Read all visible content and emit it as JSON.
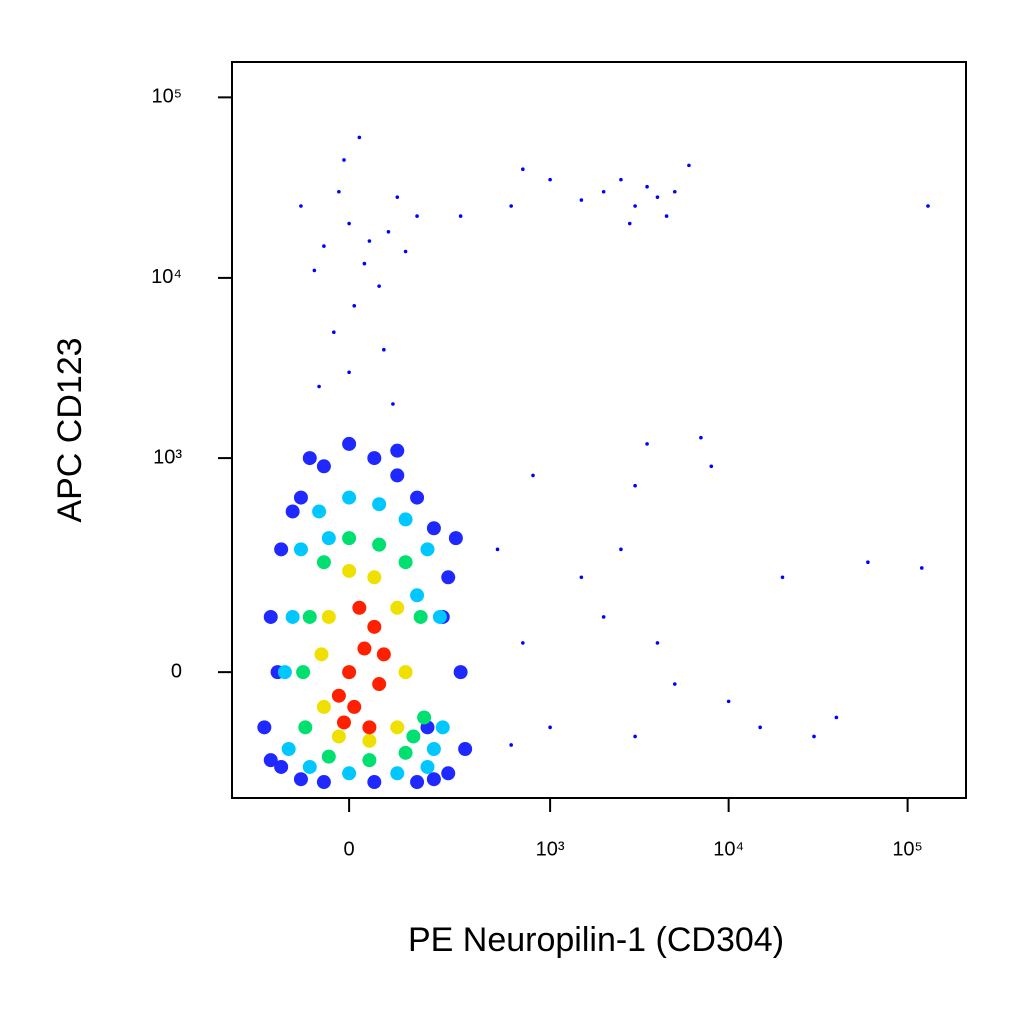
{
  "chart_data": {
    "type": "scatter",
    "x_label": "PE Neuropilin-1 (CD304)",
    "y_label": "APC  CD123",
    "xscale": "biexponential",
    "yscale": "biexponential",
    "xlim": [
      -325,
      212000
    ],
    "ylim": [
      -313,
      157000
    ],
    "xticks": [
      0,
      {
        "value": 1000,
        "label": "10³"
      },
      {
        "value": 10000,
        "label": "10⁴"
      },
      {
        "value": 100000,
        "label": "10⁵"
      }
    ],
    "yticks": [
      0,
      {
        "value": 1000,
        "label": "10³"
      },
      {
        "value": 10000,
        "label": "10⁴"
      },
      {
        "value": 100000,
        "label": "10⁵"
      }
    ],
    "series": [
      {
        "color": "#0000ff",
        "x": [
          -50,
          0,
          30,
          80,
          -100,
          60,
          120,
          -20,
          150,
          10,
          -70,
          100,
          40,
          -30,
          70,
          0,
          -60,
          90,
          20,
          -10,
          2000,
          3000,
          2500,
          4000,
          3500,
          1500,
          5000,
          1000,
          700,
          2800,
          4500,
          6000,
          600,
          300,
          130000,
          800,
          3000,
          500,
          1500,
          2000,
          4000,
          8000,
          10000,
          20000,
          60000,
          120000,
          40000,
          1000,
          3000,
          600,
          15000,
          7000,
          3500,
          30000,
          5000,
          2500,
          700
        ],
        "y": [
          15000,
          20000,
          12000,
          18000,
          25000,
          9000,
          14000,
          30000,
          22000,
          7000,
          11000,
          28000,
          16000,
          5000,
          4000,
          3000,
          2500,
          2000,
          60000,
          45000,
          30000,
          25000,
          35000,
          28000,
          32000,
          27000,
          30000,
          35000,
          40000,
          20000,
          22000,
          42000,
          25000,
          22000,
          25000,
          800,
          700,
          300,
          200,
          100,
          50,
          900,
          -50,
          200,
          250,
          230,
          -80,
          -100,
          -120,
          -140,
          -100,
          1300,
          1200,
          -120,
          -20,
          300,
          50
        ]
      },
      {
        "color": "#1e28ff",
        "x": [
          -200,
          -180,
          -150,
          -150,
          -100,
          -100,
          -50,
          0,
          50,
          100,
          150,
          200,
          250,
          300,
          320,
          250,
          150,
          50,
          -50,
          200,
          -180,
          -120,
          280,
          100,
          -80,
          180,
          -160,
          230
        ],
        "y": [
          -100,
          100,
          -200,
          300,
          -240,
          600,
          900,
          1200,
          1000,
          800,
          600,
          400,
          200,
          0,
          -150,
          -220,
          -250,
          -250,
          -250,
          -240,
          -180,
          500,
          350,
          1100,
          1000,
          -100,
          0,
          100
        ]
      },
      {
        "color": "#00c8ff",
        "x": [
          -130,
          -120,
          -100,
          -60,
          0,
          60,
          120,
          180,
          220,
          230,
          180,
          100,
          0,
          -80,
          -140,
          200,
          -40,
          150
        ],
        "y": [
          -150,
          100,
          300,
          500,
          600,
          550,
          450,
          300,
          100,
          -100,
          -200,
          -220,
          -220,
          -200,
          0,
          -150,
          350,
          150
        ]
      },
      {
        "color": "#00e070",
        "x": [
          -90,
          -80,
          -50,
          0,
          60,
          120,
          160,
          170,
          120,
          40,
          -40,
          -95,
          140
        ],
        "y": [
          -100,
          100,
          250,
          350,
          320,
          250,
          100,
          -80,
          -160,
          -180,
          -170,
          0,
          -120
        ]
      },
      {
        "color": "#f0e000",
        "x": [
          -50,
          -40,
          0,
          50,
          100,
          120,
          100,
          40,
          -20,
          -55
        ],
        "y": [
          -60,
          100,
          220,
          200,
          120,
          0,
          -100,
          -130,
          -120,
          30
        ]
      },
      {
        "color": "#ff2000",
        "x": [
          -20,
          0,
          30,
          60,
          20,
          -10,
          50,
          70,
          10,
          40
        ],
        "y": [
          -40,
          0,
          40,
          -20,
          120,
          -90,
          80,
          30,
          -60,
          -100
        ]
      }
    ]
  }
}
